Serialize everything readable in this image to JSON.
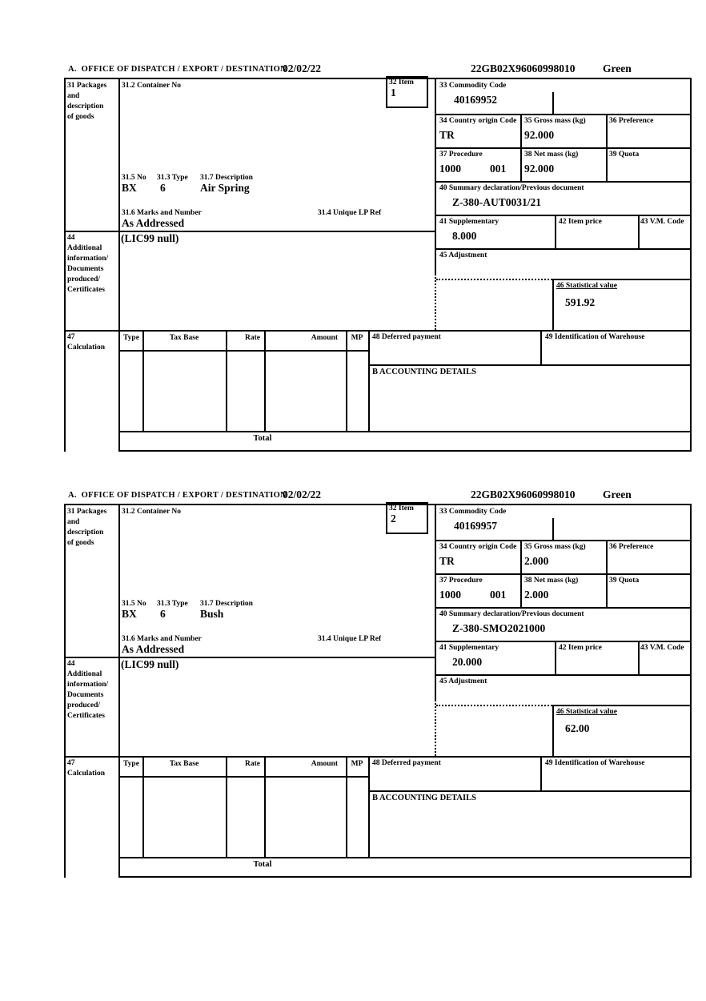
{
  "labels": {
    "office": "A.  OFFICE OF DISPATCH / EXPORT / DESTINATION",
    "box31_l1": "31 Packages",
    "box31_l2": "and",
    "box31_l3": "description",
    "box31_l4": "of goods",
    "box31_2": "31.2 Container No",
    "box32": "32 Item",
    "box33": "33 Commodity Code",
    "box34": "34 Country origin Code",
    "box35": "35 Gross mass (kg)",
    "box36": "36 Preference",
    "box37": "37 Procedure",
    "box38": "38 Net mass (kg)",
    "box39": "39 Quota",
    "box31_5": "31.5 No",
    "box31_3": "31.3 Type",
    "box31_7": "31.7 Description",
    "box31_6": "31.6 Marks and Number",
    "box31_4": "31.4 Unique LP Ref",
    "box40": "40 Summary declaration/Previous document",
    "box41": "41 Supplementary",
    "box42": "42 Item price",
    "box43": "43 V.M. Code",
    "box44_lines": [
      "44",
      "Additional",
      "information/",
      "Documents",
      "produced/",
      "Certificates"
    ],
    "box45": "45 Adjustment",
    "box46": "46 Statistical value",
    "box47_l1": "47",
    "box47_l2": "Calculation",
    "col_type": "Type",
    "col_tax_base": "Tax Base",
    "col_rate": "Rate",
    "col_amount": "Amount",
    "col_mp": "MP",
    "box48": "48 Deferred payment",
    "box49": "49 Identification of Warehouse",
    "box_b": "B ACCOUNTING DETAILS",
    "total": "Total"
  },
  "sections": [
    {
      "date": "02/02/22",
      "reference": "22GB02X96060998010",
      "status": "Green",
      "item_number": "1",
      "container_no": "",
      "commodity_code": "40169952",
      "country_origin_code": "TR",
      "gross_mass_kg": "92.000",
      "preference": "",
      "procedure": "1000",
      "procedure_suffix": "001",
      "net_mass_kg": "92.000",
      "quota": "",
      "package_no": "BX",
      "package_type": "6",
      "goods_description": "Air Spring",
      "marks_and_number": "As Addressed",
      "unique_lp_ref": "",
      "summary_declaration": "Z-380-AUT0031/21",
      "supplementary": "8.000",
      "item_price": "",
      "vm_code": "",
      "additional_information": "(LIC99 null)",
      "adjustment": "",
      "statistical_value": "591.92"
    },
    {
      "date": "02/02/22",
      "reference": "22GB02X96060998010",
      "status": "Green",
      "item_number": "2",
      "container_no": "",
      "commodity_code": "40169957",
      "country_origin_code": "TR",
      "gross_mass_kg": "2.000",
      "preference": "",
      "procedure": "1000",
      "procedure_suffix": "001",
      "net_mass_kg": "2.000",
      "quota": "",
      "package_no": "BX",
      "package_type": "6",
      "goods_description": "Bush",
      "marks_and_number": "As Addressed",
      "unique_lp_ref": "",
      "summary_declaration": "Z-380-SMO2021000",
      "supplementary": "20.000",
      "item_price": "",
      "vm_code": "",
      "additional_information": "(LIC99 null)",
      "adjustment": "",
      "statistical_value": "62.00"
    }
  ]
}
